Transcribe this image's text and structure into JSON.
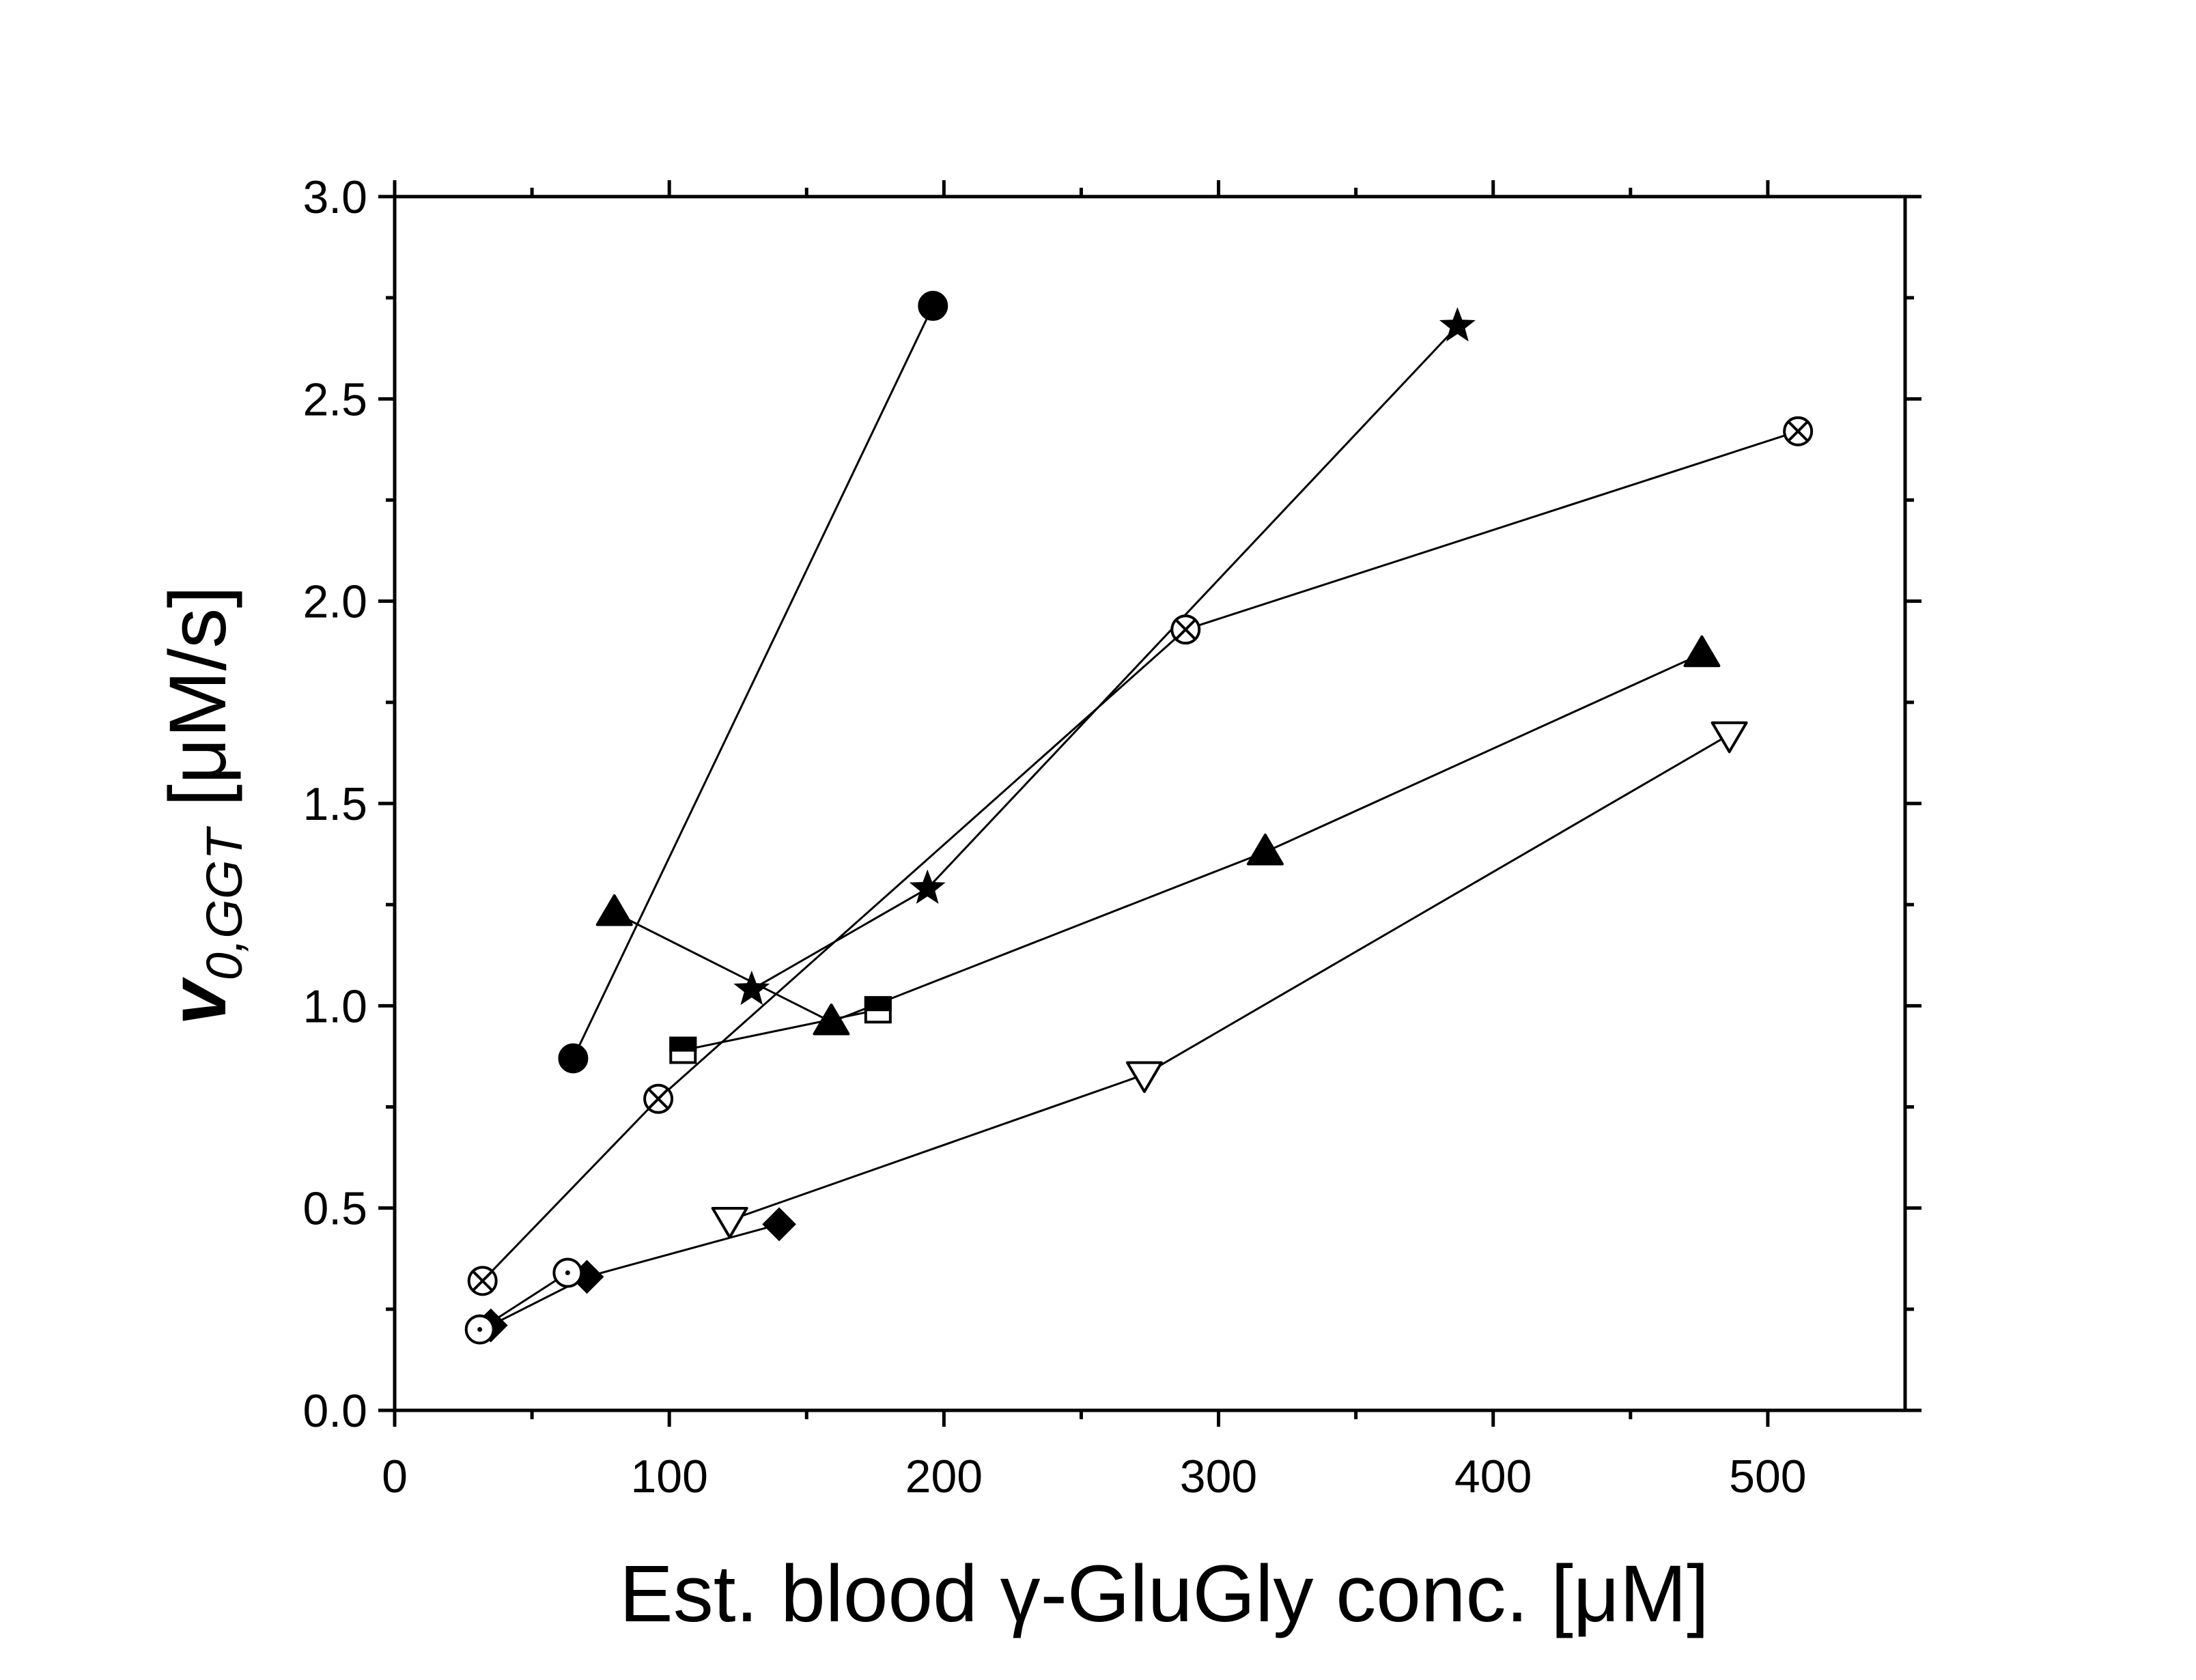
{
  "chart_data": {
    "type": "scatter",
    "title": "",
    "xlabel": "Est. blood γ-GluGly conc. [μM]",
    "ylabel": {
      "main": "v",
      "subscript": "0,GGT",
      "unit": " [μM/s]"
    },
    "xlim": [
      0,
      550
    ],
    "ylim": [
      0,
      3.0
    ],
    "x_ticks": [
      0,
      100,
      200,
      300,
      400,
      500
    ],
    "x_tick_labels": [
      "0",
      "100",
      "200",
      "300",
      "400",
      "500"
    ],
    "x_minor_ticks": [
      50,
      150,
      250,
      350,
      450
    ],
    "y_ticks": [
      0.0,
      0.5,
      1.0,
      1.5,
      2.0,
      2.5,
      3.0
    ],
    "y_tick_labels": [
      "0.0",
      "0.5",
      "1.0",
      "1.5",
      "2.0",
      "2.5",
      "3.0"
    ],
    "y_minor_ticks": [
      0.25,
      0.75,
      1.25,
      1.75,
      2.25,
      2.75
    ],
    "grid": false,
    "legend": "none",
    "series": [
      {
        "name": "filled-circle",
        "marker": "circle-filled",
        "points": [
          [
            65,
            0.87
          ],
          [
            196,
            2.73
          ]
        ]
      },
      {
        "name": "star",
        "marker": "star",
        "points": [
          [
            130,
            1.04
          ],
          [
            194,
            1.29
          ],
          [
            387,
            2.68
          ]
        ]
      },
      {
        "name": "crossed-circle",
        "marker": "circle-crossed",
        "points": [
          [
            32,
            0.32
          ],
          [
            96,
            0.77
          ],
          [
            288,
            1.93
          ],
          [
            511,
            2.42
          ]
        ]
      },
      {
        "name": "filled-triangle",
        "marker": "triangle-up-filled",
        "points": [
          [
            80,
            1.23
          ],
          [
            159,
            0.96
          ],
          [
            317,
            1.38
          ],
          [
            476,
            1.87
          ]
        ]
      },
      {
        "name": "half-filled-square",
        "marker": "square-half",
        "points": [
          [
            105,
            0.89
          ],
          [
            176,
            0.99
          ]
        ]
      },
      {
        "name": "open-triangle-down",
        "marker": "triangle-down-open",
        "points": [
          [
            122,
            0.47
          ],
          [
            273,
            0.83
          ],
          [
            486,
            1.67
          ]
        ]
      },
      {
        "name": "filled-diamond",
        "marker": "diamond-filled",
        "points": [
          [
            35,
            0.21
          ],
          [
            70,
            0.33
          ],
          [
            140,
            0.46
          ]
        ]
      },
      {
        "name": "dotted-open-circle",
        "marker": "circle-dotted",
        "points": [
          [
            31,
            0.2
          ],
          [
            63,
            0.34
          ]
        ]
      }
    ]
  }
}
